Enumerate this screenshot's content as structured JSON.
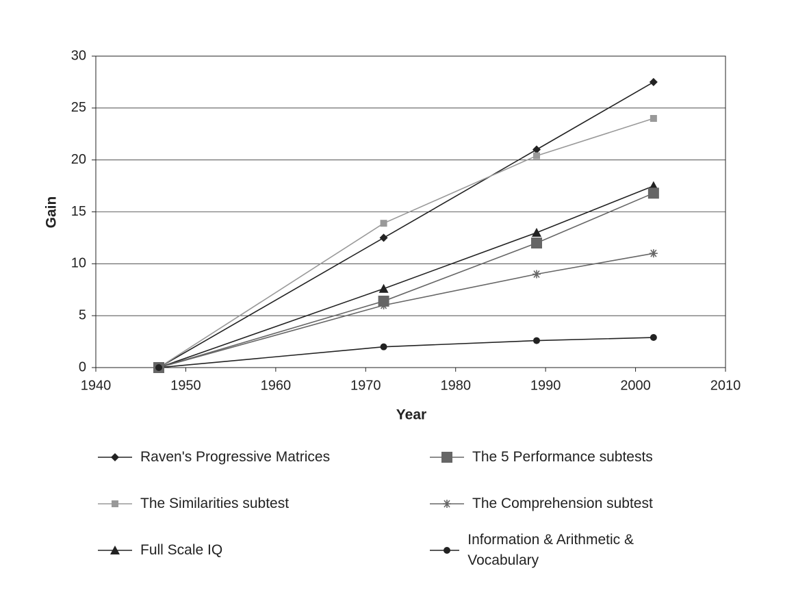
{
  "chart_data": {
    "type": "line",
    "x_label": "Year",
    "y_label": "Gain",
    "x": [
      1947,
      1972,
      1989,
      2002
    ],
    "xlim": [
      1940,
      2010
    ],
    "xticks": [
      1940,
      1950,
      1960,
      1970,
      1980,
      1990,
      2000,
      2010
    ],
    "ylim": [
      0,
      30
    ],
    "yticks": [
      0,
      5,
      10,
      15,
      20,
      25,
      30
    ],
    "grid": true,
    "series": [
      {
        "name": "Raven's Progressive Matrices",
        "color": "#222222",
        "marker": "diamond",
        "values": [
          0,
          12.5,
          21,
          27.5
        ]
      },
      {
        "name": "The Similarities subtest",
        "color": "#999999",
        "marker": "small-square",
        "values": [
          0,
          13.9,
          20.4,
          24
        ]
      },
      {
        "name": "Full Scale IQ",
        "color": "#222222",
        "marker": "triangle",
        "values": [
          0,
          7.6,
          13,
          17.5
        ]
      },
      {
        "name": "The 5 Performance subtests",
        "color": "#666666",
        "marker": "square",
        "values": [
          0,
          6.4,
          12,
          16.8
        ]
      },
      {
        "name": "The Comprehension subtest",
        "color": "#666666",
        "marker": "asterisk",
        "values": [
          0,
          6,
          9,
          11
        ]
      },
      {
        "name": "Information & Arithmetic & Vocabulary",
        "color": "#222222",
        "marker": "circle",
        "values": [
          0,
          2,
          2.6,
          2.9
        ]
      }
    ]
  }
}
